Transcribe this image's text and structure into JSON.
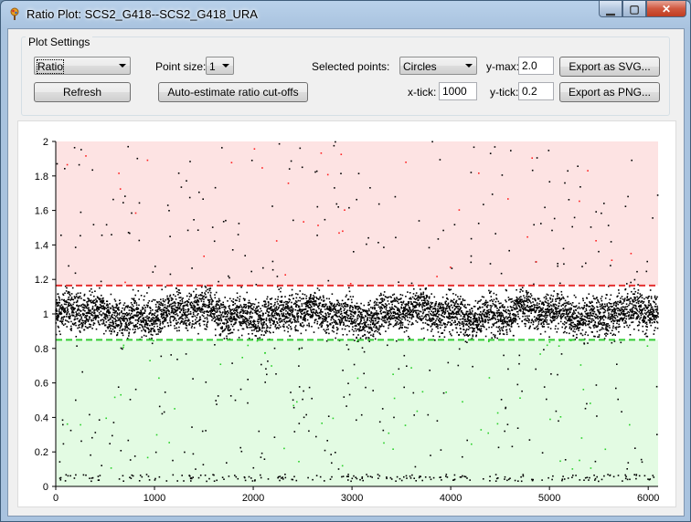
{
  "window": {
    "title": "Ratio Plot: SCS2_G418--SCS2_G418_URA",
    "minimize_glyph": "▁",
    "maximize_glyph": "▢",
    "close_glyph": "✕"
  },
  "settings": {
    "group_title": "Plot Settings",
    "plot_type_value": "Ratio",
    "refresh_label": "Refresh",
    "point_size_label": "Point size:",
    "point_size_value": "1",
    "auto_estimate_label": "Auto-estimate ratio cut-offs",
    "selected_points_label": "Selected points:",
    "selected_points_value": "Circles",
    "xtick_label": "x-tick:",
    "xtick_value": "1000",
    "ymax_label": "y-max:",
    "ymax_value": "2.0",
    "ytick_label": "y-tick:",
    "ytick_value": "0.2",
    "export_svg_label": "Export as SVG...",
    "export_png_label": "Export as PNG..."
  },
  "chart_data": {
    "type": "scatter",
    "title": "",
    "xlabel": "",
    "ylabel": "",
    "xlim": [
      0,
      6100
    ],
    "ylim": [
      0,
      2
    ],
    "x_ticks": [
      "0",
      "1000",
      "2000",
      "3000",
      "4000",
      "5000",
      "6000"
    ],
    "y_ticks": [
      "0",
      "0.2",
      "0.4",
      "0.6",
      "0.8",
      "1",
      "1.2",
      "1.4",
      "1.6",
      "1.8",
      "2"
    ],
    "upper_cutoff": 1.165,
    "lower_cutoff": 0.85,
    "n_points_approx": 6100,
    "series": [
      {
        "name": "",
        "color": "#000000",
        "description_center": 1.0
      },
      {
        "name": "",
        "color": "#ff2020",
        "values_range": [
          1.165,
          2.0
        ]
      },
      {
        "name": "",
        "color": "#2ad02a",
        "values_range": [
          0.0,
          0.85
        ]
      }
    ],
    "colors": {
      "upper_region": "#fde3e3",
      "lower_region": "#e3fbe3",
      "upper_line": "#e53030",
      "lower_line": "#33cc33",
      "points": "#000000",
      "selected_up": "#ff2020",
      "selected_down": "#2ad02a"
    },
    "grid": false
  }
}
